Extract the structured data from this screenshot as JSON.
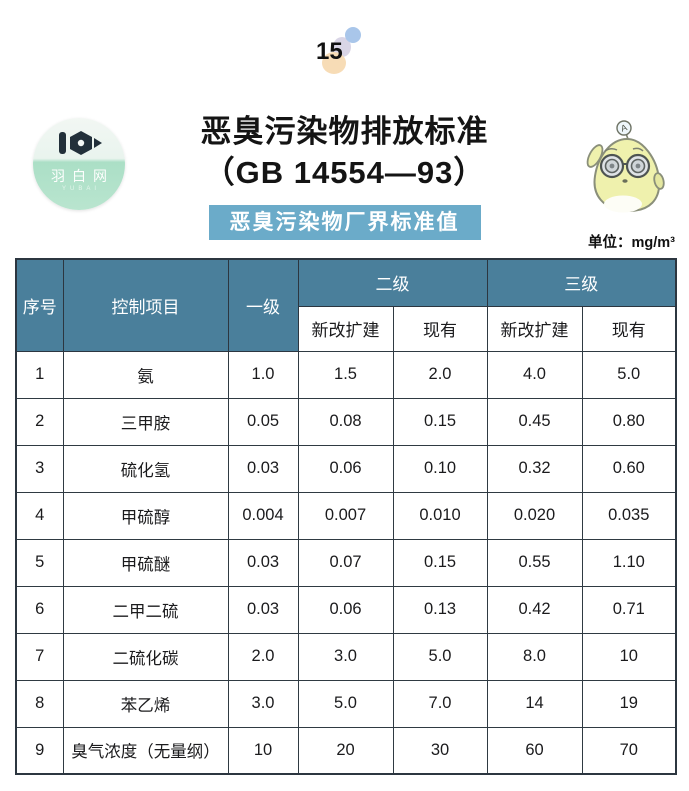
{
  "page_number": "15",
  "header": {
    "title_line1": "恶臭污染物排放标准",
    "title_line2": "（GB 14554—93）",
    "logo": {
      "name": "羽白网",
      "subtext": "YUBAI"
    },
    "mascot": {
      "antenna_letter": "A"
    },
    "badge_label": "恶臭污染物厂界标准值"
  },
  "table": {
    "unit_note": "单位：mg/m³",
    "header": {
      "no": "序号",
      "item": "控制项目",
      "level1": "一级",
      "level2": "二级",
      "level3": "三级",
      "sub": [
        "新改扩建",
        "现有",
        "新改扩建",
        "现有"
      ]
    },
    "rows": [
      [
        "1",
        "氨",
        "1.0",
        "1.5",
        "2.0",
        "4.0",
        "5.0"
      ],
      [
        "2",
        "三甲胺",
        "0.05",
        "0.08",
        "0.15",
        "0.45",
        "0.80"
      ],
      [
        "3",
        "硫化氢",
        "0.03",
        "0.06",
        "0.10",
        "0.32",
        "0.60"
      ],
      [
        "4",
        "甲硫醇",
        "0.004",
        "0.007",
        "0.010",
        "0.020",
        "0.035"
      ],
      [
        "5",
        "甲硫醚",
        "0.03",
        "0.07",
        "0.15",
        "0.55",
        "1.10"
      ],
      [
        "6",
        "二甲二硫",
        "0.03",
        "0.06",
        "0.13",
        "0.42",
        "0.71"
      ],
      [
        "7",
        "二硫化碳",
        "2.0",
        "3.0",
        "5.0",
        "8.0",
        "10"
      ],
      [
        "8",
        "苯乙烯",
        "3.0",
        "5.0",
        "7.0",
        "14",
        "19"
      ],
      [
        "9",
        "臭气浓度（无量纲）",
        "10",
        "20",
        "30",
        "60",
        "70"
      ]
    ]
  },
  "colors": {
    "table_header_teal": "#4A7F9B",
    "badge_blue": "#6BABC9",
    "logo_mint": "#ABDFC6",
    "mascot_yellow": "#EFF1AD",
    "decor_dot_blue": "#A9C6EA",
    "decor_blob_peach": "#F7DCB6",
    "border_dark": "#2C3640"
  }
}
